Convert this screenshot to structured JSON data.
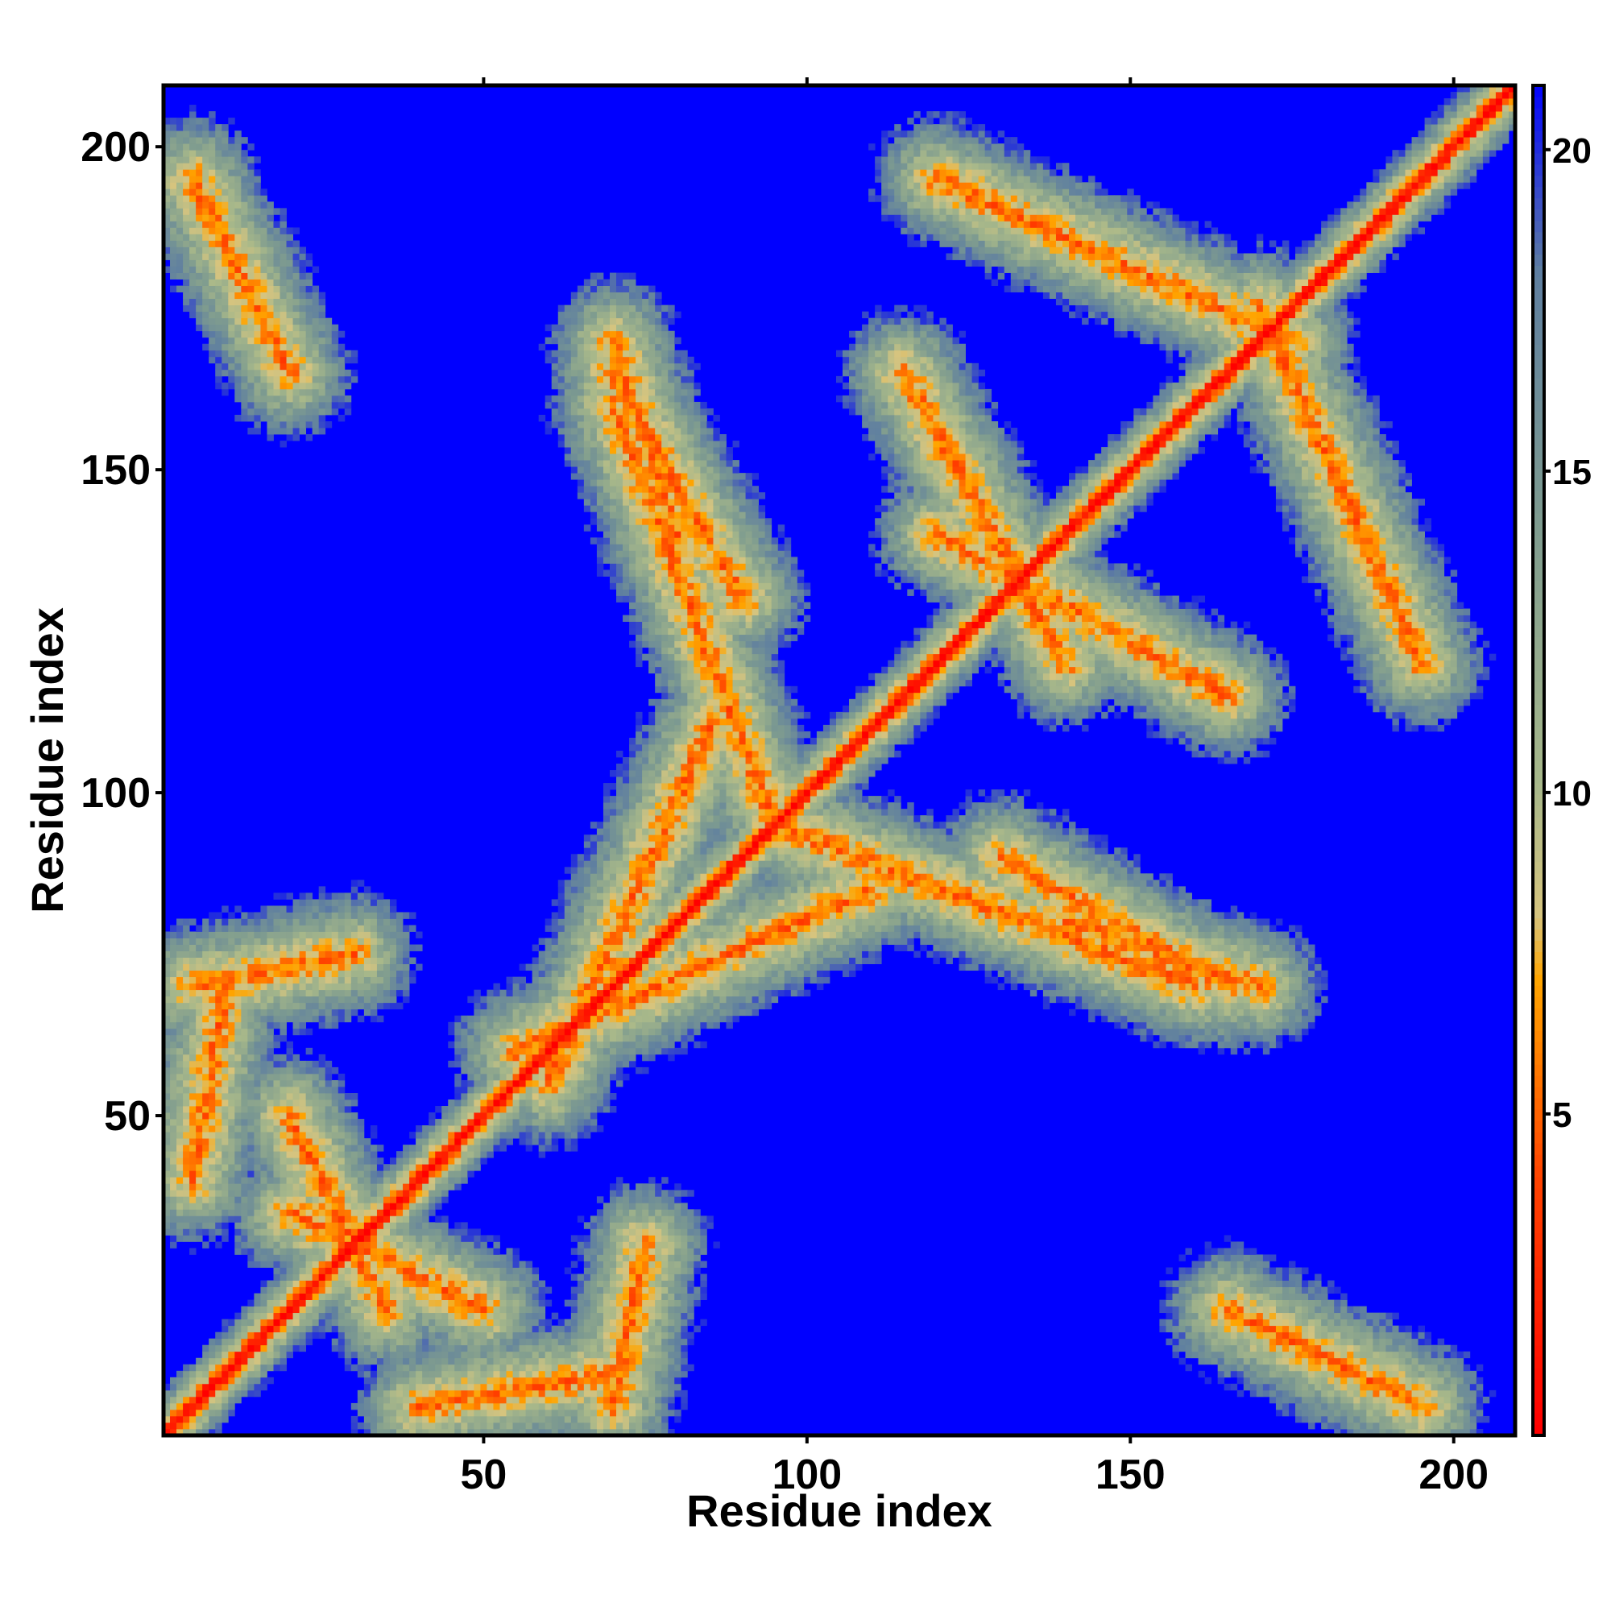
{
  "chart_data": {
    "type": "heatmap",
    "title": "",
    "xlabel": "Residue index",
    "ylabel": "Residue index",
    "n_residues": 209,
    "xlim": [
      1,
      209
    ],
    "ylim": [
      1,
      209
    ],
    "x_ticks": [
      50,
      100,
      150,
      200
    ],
    "y_ticks": [
      50,
      100,
      150,
      200
    ],
    "colorbar": {
      "ticks": [
        5,
        10,
        15,
        20
      ],
      "range": [
        0,
        21
      ],
      "colors": [
        {
          "value": 0,
          "color": "#ff0000"
        },
        {
          "value": 4,
          "color": "#ff4500"
        },
        {
          "value": 7,
          "color": "#ffa500"
        },
        {
          "value": 8,
          "color": "#d6c47f"
        },
        {
          "value": 10,
          "color": "#a8b88a"
        },
        {
          "value": 14,
          "color": "#7f9c8f"
        },
        {
          "value": 18,
          "color": "#5f7fa0"
        },
        {
          "value": 21,
          "color": "#0000ff"
        }
      ]
    },
    "structure_note_values": {
      "diagonal": "distance 0 on diagonal, increasing away from it",
      "contact_bands": [
        {
          "from": [
            20,
            50
          ],
          "to": [
            35,
            20
          ]
        },
        {
          "from": [
            60,
            55
          ],
          "to": [
            85,
            110
          ]
        },
        {
          "from": [
            95,
            95
          ],
          "to": [
            160,
            70
          ]
        },
        {
          "from": [
            5,
            70
          ],
          "to": [
            30,
            75
          ]
        },
        {
          "from": [
            40,
            5
          ],
          "to": [
            70,
            10
          ]
        },
        {
          "from": [
            70,
            165
          ],
          "to": [
            90,
            130
          ]
        },
        {
          "from": [
            120,
            140
          ],
          "to": [
            165,
            115
          ]
        },
        {
          "from": [
            140,
            80
          ],
          "to": [
            170,
            70
          ]
        },
        {
          "from": [
            5,
            195
          ],
          "to": [
            20,
            165
          ]
        },
        {
          "from": [
            120,
            195
          ],
          "to": [
            175,
            170
          ]
        }
      ]
    },
    "background_color": "#0000ff"
  }
}
